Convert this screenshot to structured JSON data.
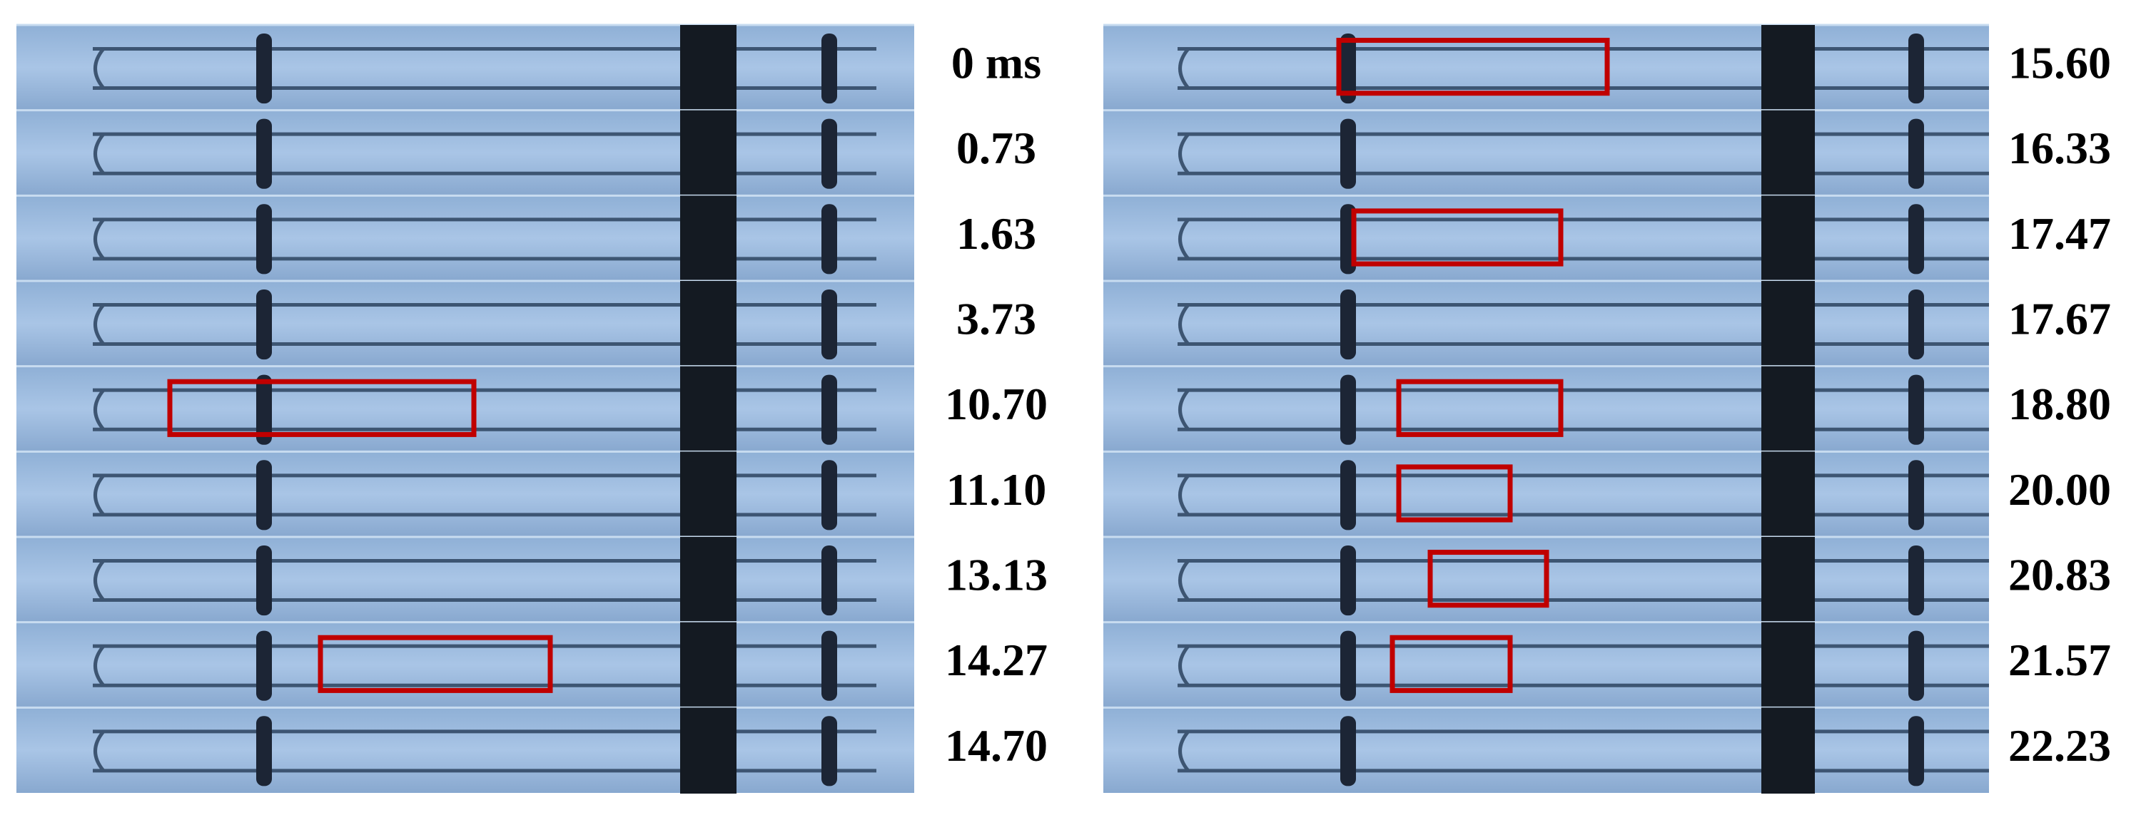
{
  "left_times": [
    "0 ms",
    "0.73",
    "1.63",
    "3.73",
    "10.70",
    "11.10",
    "13.13",
    "14.27",
    "14.70"
  ],
  "right_times": [
    "15.60",
    "16.33",
    "17.47",
    "17.67",
    "18.80",
    "20.00",
    "20.83",
    "21.57",
    "22.23"
  ]
}
